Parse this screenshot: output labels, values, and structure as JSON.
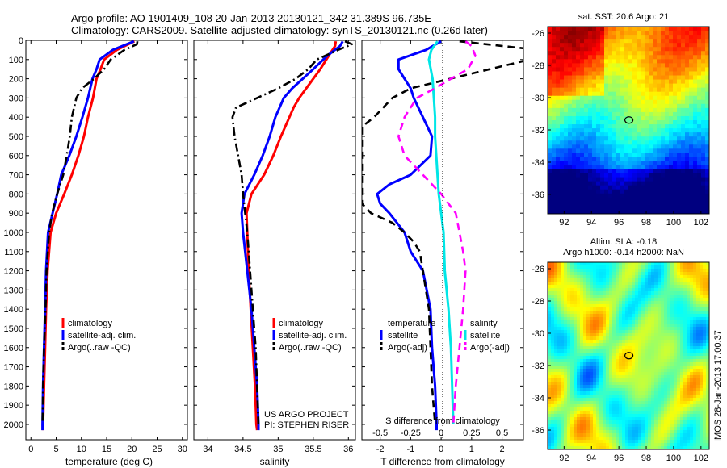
{
  "header": {
    "line1": "Argo profile: AO 1901409_108 20-Jan-2013 20130121_342 31.389S 96.735E",
    "line2": "Climatology: CARS2009. Satellite-adjusted climatology: synTS_20130121.nc (0.26d later)"
  },
  "colors": {
    "clim": "#ff0000",
    "sat": "#0000ff",
    "argo": "#000000",
    "sal_sat": "#00e6e6",
    "sal_argo": "#ff00ff"
  },
  "chart_data": [
    {
      "type": "line",
      "id": "temperature",
      "xlabel": "temperature (deg C)",
      "ylabel": "",
      "xlim": [
        -1,
        31
      ],
      "ylim": [
        2080,
        0
      ],
      "xticks": [
        0,
        5,
        10,
        15,
        20,
        25,
        30
      ],
      "yticks": [
        0,
        100,
        200,
        300,
        400,
        500,
        600,
        700,
        800,
        900,
        1000,
        1100,
        1200,
        1300,
        1400,
        1500,
        1600,
        1700,
        1800,
        1900,
        2000
      ],
      "legend": [
        "climatology",
        "satellite-adj. clim.",
        "Argo(..raw -QC)"
      ],
      "series": [
        {
          "name": "climatology",
          "style": "solid",
          "depth": [
            5,
            50,
            100,
            150,
            200,
            300,
            400,
            500,
            600,
            700,
            800,
            900,
            1000,
            1200,
            1400,
            1600,
            1800,
            2000,
            2030
          ],
          "values": [
            20.5,
            17,
            14.5,
            13.8,
            13,
            12.3,
            11.3,
            10.5,
            9.4,
            8.1,
            6.6,
            5,
            3.9,
            3.3,
            3,
            2.8,
            2.6,
            2.4,
            2.4
          ]
        },
        {
          "name": "satellite-adj. clim.",
          "style": "solid",
          "depth": [
            5,
            50,
            100,
            150,
            200,
            300,
            400,
            500,
            600,
            700,
            800,
            900,
            1000,
            1200,
            1400,
            1600,
            1800,
            2000,
            2030
          ],
          "values": [
            20.4,
            16.2,
            13.6,
            13,
            12.2,
            11.3,
            10.2,
            9,
            7.6,
            6,
            5.2,
            4.3,
            3.4,
            3,
            2.8,
            2.6,
            2.4,
            2.3,
            2.3
          ]
        },
        {
          "name": "Argo(..raw -QC)",
          "style": "dashdot",
          "depth": [
            5,
            20,
            50,
            100,
            150,
            200,
            250,
            300,
            400,
            500,
            600,
            700,
            800,
            900,
            1000,
            1200,
            1400,
            1600,
            1800,
            2000
          ],
          "values": [
            21.1,
            21,
            18.5,
            15.8,
            14.5,
            12.5,
            10.1,
            9,
            8.1,
            7.7,
            7.1,
            6.4,
            5.2,
            4.2,
            3.6,
            3.1,
            2.9,
            2.6,
            2.4,
            2.3
          ]
        }
      ]
    },
    {
      "type": "line",
      "id": "salinity",
      "xlabel": "salinity",
      "ylabel": "",
      "xlim": [
        33.8,
        36.1
      ],
      "ylim": [
        2080,
        0
      ],
      "xticks": [
        34,
        34.5,
        35,
        35.5,
        36
      ],
      "legend": [
        "climatology",
        "satellite-adj. clim.",
        "Argo(..raw -QC)"
      ],
      "annotation": [
        "US ARGO PROJECT",
        "PI: STEPHEN RISER"
      ],
      "series": [
        {
          "name": "climatology",
          "style": "solid",
          "depth": [
            5,
            30,
            80,
            150,
            200,
            250,
            300,
            350,
            400,
            500,
            600,
            700,
            800,
            900,
            1000,
            1200,
            1400,
            1600,
            1800,
            2000,
            2030
          ],
          "values": [
            35.82,
            35.81,
            35.72,
            35.6,
            35.5,
            35.4,
            35.3,
            35.22,
            35.16,
            35.04,
            34.93,
            34.8,
            34.62,
            34.55,
            34.56,
            34.58,
            34.61,
            34.64,
            34.67,
            34.69,
            34.7
          ]
        },
        {
          "name": "satellite-adj. clim.",
          "style": "solid",
          "depth": [
            5,
            30,
            80,
            150,
            200,
            250,
            300,
            350,
            400,
            500,
            600,
            700,
            800,
            900,
            1000,
            1200,
            1400,
            1600,
            1800,
            2000,
            2030
          ],
          "values": [
            35.92,
            35.88,
            35.7,
            35.5,
            35.35,
            35.2,
            35.08,
            35.02,
            34.96,
            34.88,
            34.78,
            34.66,
            34.52,
            34.48,
            34.5,
            34.56,
            34.62,
            34.66,
            34.7,
            34.72,
            34.72
          ]
        },
        {
          "name": "Argo(..raw -QC)",
          "style": "dashdot",
          "depth": [
            5,
            20,
            50,
            100,
            150,
            200,
            250,
            300,
            350,
            400,
            500,
            600,
            700,
            800,
            900,
            1000,
            1200,
            1400,
            1600,
            1800,
            2000
          ],
          "values": [
            35.95,
            36.05,
            35.85,
            35.55,
            35.43,
            35.25,
            35.0,
            34.7,
            34.4,
            34.35,
            34.38,
            34.43,
            34.48,
            34.5,
            34.53,
            34.56,
            34.6,
            34.64,
            34.68,
            34.7,
            34.72
          ]
        }
      ]
    },
    {
      "type": "line",
      "id": "difference",
      "xlabel": "T difference from climatology",
      "xlabel_top": "S difference from climatology",
      "xlim": [
        -2.6,
        2.7
      ],
      "ylim": [
        2080,
        0
      ],
      "xticks": [
        -2,
        -1,
        0,
        1,
        2
      ],
      "xticks_top": [
        -0.5,
        -0.25,
        0,
        0.25,
        0.5
      ],
      "xlim_top": [
        -0.65,
        0.675
      ],
      "legend_t_title": "temperature",
      "legend_s_title": "salinity",
      "legend": [
        "satellite",
        "Argo(-adj)",
        "satellite",
        "Argo(-adj)"
      ],
      "series": [
        {
          "name": "satellite",
          "group": "temperature",
          "style": "solid",
          "depth": [
            5,
            50,
            100,
            150,
            200,
            250,
            300,
            400,
            500,
            600,
            700,
            750,
            800,
            850,
            900,
            1000,
            1100,
            1200,
            1400,
            1600,
            1800,
            2000,
            2030
          ],
          "values": [
            0,
            -0.5,
            -1.4,
            -1.4,
            -1.2,
            -1.0,
            -0.9,
            -0.6,
            -0.3,
            -0.35,
            -1.0,
            -1.7,
            -2.1,
            -2.0,
            -1.7,
            -1.2,
            -1.0,
            -0.6,
            -0.35,
            -0.3,
            -0.2,
            -0.15,
            -0.15
          ]
        },
        {
          "name": "Argo(-adj)",
          "group": "temperature",
          "style": "dashed",
          "depth": [
            5,
            50,
            100,
            150,
            200,
            250,
            300,
            400,
            450,
            850,
            900,
            950,
            1000,
            1050,
            1100,
            1200,
            1400,
            1600,
            1800,
            2000
          ],
          "values": [
            0.6,
            3.2,
            2.9,
            1.6,
            0.3,
            -1,
            -1.6,
            -2.2,
            -2.6,
            -2.6,
            -2.3,
            -1.6,
            -1.2,
            -0.9,
            -0.7,
            -0.6,
            -0.4,
            -0.35,
            -0.3,
            -0.2
          ]
        },
        {
          "name": "satellite",
          "group": "salinity",
          "style": "solid",
          "depth": [
            5,
            50,
            100,
            200,
            300,
            400,
            500,
            600,
            700,
            800,
            900,
            1000,
            1200,
            1400,
            1600,
            1800,
            2000
          ],
          "values": [
            -0.03,
            -0.08,
            -0.1,
            -0.07,
            -0.06,
            -0.05,
            -0.05,
            -0.04,
            -0.03,
            -0.02,
            0.0,
            0.02,
            0.03,
            0.06,
            0.08,
            0.09,
            0.1
          ]
        },
        {
          "name": "Argo(-adj)",
          "group": "salinity",
          "style": "dashed",
          "depth": [
            5,
            30,
            80,
            150,
            200,
            250,
            300,
            400,
            500,
            600,
            700,
            800,
            900,
            1000,
            1100,
            1200,
            1400,
            1600,
            1800,
            2000
          ],
          "values": [
            0.2,
            0.25,
            0.28,
            0.22,
            0.08,
            -0.05,
            -0.2,
            -0.3,
            -0.35,
            -0.3,
            -0.15,
            0.0,
            0.12,
            0.15,
            0.18,
            0.2,
            0.18,
            0.15,
            0.12,
            0.1
          ]
        }
      ]
    },
    {
      "type": "heatmap",
      "id": "sst-map",
      "title": "sat. SST: 20.6 Argo: 21",
      "xticks": [
        92,
        94,
        96,
        98,
        100,
        102
      ],
      "yticks": [
        -26,
        -28,
        -30,
        -32,
        -34,
        -36
      ],
      "xlim": [
        90.8,
        102.6
      ],
      "ylim": [
        -37.2,
        -25.6
      ],
      "argo_position": [
        96.735,
        -31.389
      ]
    },
    {
      "type": "heatmap",
      "id": "sla-map",
      "title": "Altim. SLA: -0.18",
      "subtitle": "Argo h1000: -0.14 h2000: NaN",
      "xticks": [
        92,
        94,
        96,
        98,
        100,
        102
      ],
      "yticks": [
        -26,
        -28,
        -30,
        -32,
        -34,
        -36
      ],
      "xlim": [
        90.8,
        102.6
      ],
      "ylim": [
        -37.2,
        -25.6
      ],
      "argo_position": [
        96.735,
        -31.389
      ]
    }
  ],
  "footer": {
    "stamp": "IMOS 28-Jan-2013 17:00:37"
  }
}
